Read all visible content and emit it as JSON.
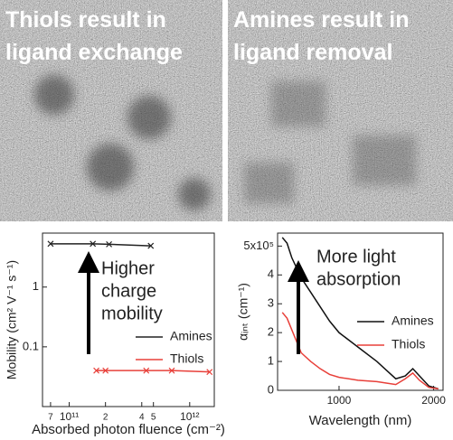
{
  "panels": [
    {
      "lines": [
        "Thiols result in",
        "ligand exchange"
      ]
    },
    {
      "lines": [
        "Amines result in",
        "ligand removal"
      ]
    }
  ],
  "chart_data": [
    {
      "type": "line",
      "xlabel": "Absorbed photon fluence (cm⁻²)",
      "ylabel": "Mobility (cm² V⁻¹ s⁻¹)",
      "xscale": "log",
      "yscale": "log",
      "xlim": [
        60000000000,
        1600000000000
      ],
      "ylim": [
        0.01,
        8
      ],
      "xticks": [
        {
          "value": 70000000000,
          "label": "7"
        },
        {
          "value": 100000000000,
          "label": "10¹¹"
        },
        {
          "value": 200000000000,
          "label": "2"
        },
        {
          "value": 400000000000,
          "label": "4"
        },
        {
          "value": 500000000000,
          "label": "5"
        },
        {
          "value": 1000000000000,
          "label": "10¹²"
        }
      ],
      "yticks": [
        0.1,
        1
      ],
      "annotation": [
        "Higher",
        "charge",
        "mobility"
      ],
      "legend": "lower right",
      "series": [
        {
          "name": "Amines",
          "color": "#222222",
          "x": [
            70000000000,
            157000000000,
            214000000000,
            475000000000
          ],
          "values": [
            5.3,
            5.3,
            5.2,
            4.9
          ]
        },
        {
          "name": "Thiols",
          "color": "#e8403a",
          "x": [
            168000000000,
            200000000000,
            436000000000,
            710000000000,
            1460000000000
          ],
          "values": [
            0.04,
            0.04,
            0.04,
            0.04,
            0.038
          ]
        }
      ]
    },
    {
      "type": "line",
      "xlabel": "Wavelength (nm)",
      "ylabel": "αᵢₙₜ (cm⁻¹)",
      "xscale": "linear",
      "yscale": "linear",
      "xlim": [
        350,
        2100
      ],
      "ylim": [
        0,
        5.45
      ],
      "xticks": [
        1000,
        2000
      ],
      "yticks": [
        0,
        1,
        2,
        3,
        4,
        {
          "value": 5,
          "label": "5x10⁵"
        }
      ],
      "annotation": [
        "More light",
        "absorption"
      ],
      "legend": "center right",
      "series": [
        {
          "name": "Amines",
          "color": "#111111",
          "x": [
            400,
            450,
            500,
            600,
            700,
            800,
            900,
            1000,
            1200,
            1400,
            1500,
            1600,
            1700,
            1780,
            1850,
            1950,
            2050
          ],
          "values": [
            5.3,
            5.1,
            4.6,
            3.9,
            3.4,
            2.9,
            2.4,
            2.0,
            1.5,
            1.0,
            0.7,
            0.4,
            0.5,
            0.75,
            0.5,
            0.15,
            0.05
          ]
        },
        {
          "name": "Thiols",
          "color": "#e8403a",
          "x": [
            400,
            450,
            500,
            600,
            700,
            800,
            900,
            1000,
            1200,
            1400,
            1500,
            1600,
            1700,
            1780,
            1850,
            1950,
            2050
          ],
          "values": [
            2.7,
            2.5,
            2.1,
            1.3,
            1.0,
            0.75,
            0.55,
            0.45,
            0.35,
            0.3,
            0.25,
            0.2,
            0.4,
            0.6,
            0.35,
            0.1,
            0.05
          ]
        }
      ]
    }
  ]
}
